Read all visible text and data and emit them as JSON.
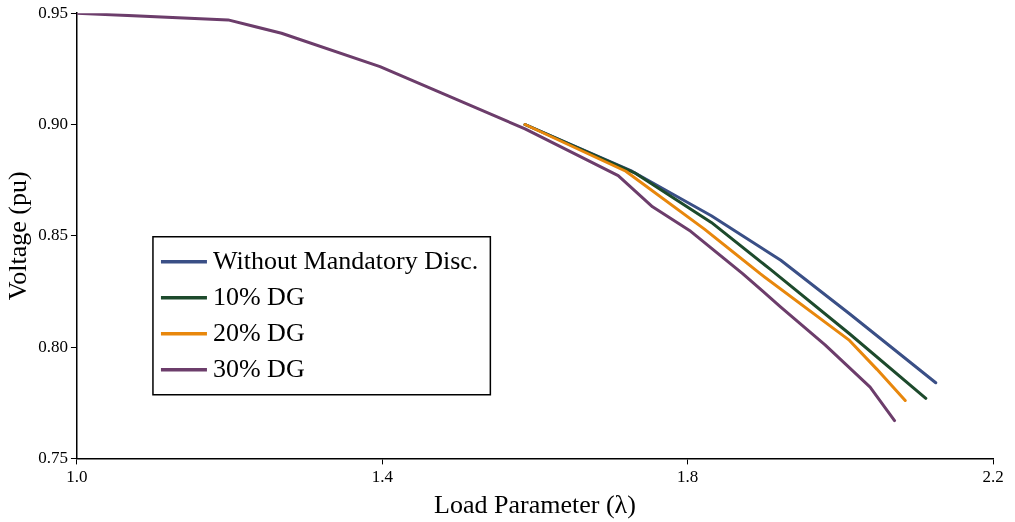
{
  "chart_data": {
    "type": "line",
    "xlabel": "Load Parameter (λ)",
    "ylabel": "Voltage (pu)",
    "xlim": [
      1.0,
      2.2
    ],
    "xticks": [
      {
        "value": 1.0,
        "label": "1.0"
      },
      1.4,
      1.8,
      {
        "value": 2.2,
        "label": "2.2"
      }
    ],
    "ylim": [
      0.75,
      0.95
    ],
    "yticks": [
      0.75,
      {
        "value": 0.8,
        "label": "0.80"
      },
      0.85,
      {
        "value": 0.9,
        "label": "0.90"
      },
      0.95
    ],
    "grid": false,
    "legend": "left",
    "marker": "none",
    "line_style": "solid",
    "series": [
      {
        "name": "Without Mandatory Disc.",
        "color": "#3a4f86",
        "x": [
          1.587,
          1.727,
          1.831,
          1.922,
          2.012,
          2.125
        ],
        "values": [
          0.9,
          0.879,
          0.859,
          0.839,
          0.815,
          0.784
        ]
      },
      {
        "name": "10% DG",
        "color": "#1d4a2c",
        "x": [
          1.587,
          1.732,
          1.831,
          1.908,
          2.012,
          2.112
        ],
        "values": [
          0.9,
          0.878,
          0.856,
          0.835,
          0.806,
          0.777
        ]
      },
      {
        "name": "20% DG",
        "color": "#e8870c",
        "x": [
          1.587,
          1.719,
          1.822,
          1.895,
          2.012,
          2.048,
          2.085
        ],
        "values": [
          0.9,
          0.879,
          0.853,
          0.833,
          0.803,
          0.79,
          0.776
        ]
      },
      {
        "name": "30% DG",
        "color": "#6c3d6b",
        "x": [
          1.0,
          1.198,
          1.268,
          1.397,
          1.587,
          1.651,
          1.709,
          1.754,
          1.804,
          1.872,
          1.922,
          1.98,
          2.039,
          2.071
        ],
        "values": [
          0.95,
          0.947,
          0.941,
          0.926,
          0.898,
          0.887,
          0.877,
          0.863,
          0.852,
          0.833,
          0.818,
          0.801,
          0.782,
          0.767
        ]
      }
    ]
  }
}
